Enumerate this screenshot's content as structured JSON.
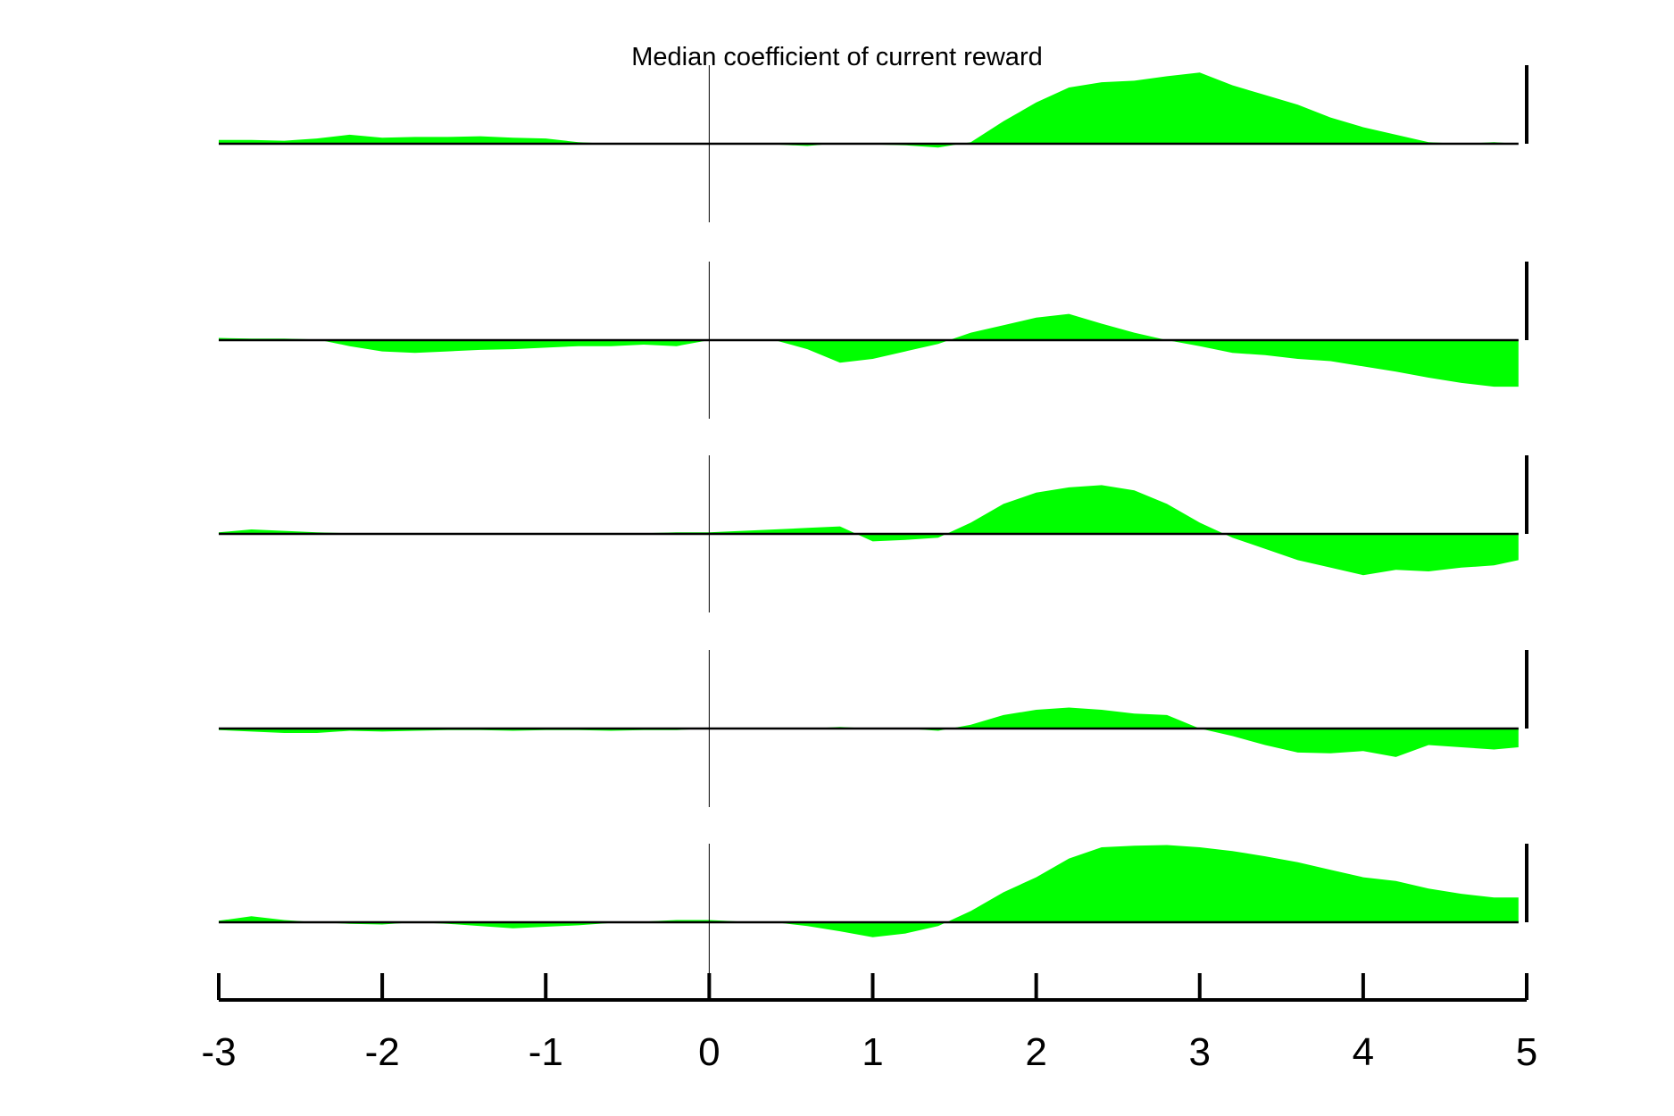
{
  "chart_data": {
    "type": "area",
    "title": "Median coefficient of current reward",
    "xlabel": "",
    "ylabel": "",
    "xlim": [
      -3,
      5
    ],
    "xticks": [
      -3,
      -2,
      -1,
      0,
      1,
      2,
      3,
      4,
      5
    ],
    "xtick_labels": [
      "-3",
      "-2",
      "-1",
      "0",
      "1",
      "2",
      "3",
      "4",
      "5"
    ],
    "grid": false,
    "legend": "none",
    "fill_color": "#00ff00",
    "line_color": "#000000",
    "x": [
      -3.0,
      -2.8,
      -2.6,
      -2.4,
      -2.2,
      -2.0,
      -1.8,
      -1.6,
      -1.4,
      -1.2,
      -1.0,
      -0.8,
      -0.6,
      -0.4,
      -0.2,
      0.0,
      0.2,
      0.4,
      0.6,
      0.8,
      1.0,
      1.2,
      1.4,
      1.6,
      1.8,
      2.0,
      2.2,
      2.4,
      2.6,
      2.8,
      3.0,
      3.2,
      3.4,
      3.6,
      3.8,
      4.0,
      4.2,
      4.4,
      4.6,
      4.8,
      4.95
    ],
    "series": [
      {
        "values": [
          0.05,
          0.05,
          0.04,
          0.07,
          0.12,
          0.08,
          0.09,
          0.09,
          0.1,
          0.08,
          0.07,
          0.02,
          0.0,
          0.0,
          0.0,
          0.0,
          0.0,
          -0.01,
          -0.03,
          0.01,
          -0.01,
          -0.02,
          -0.05,
          0.02,
          0.3,
          0.55,
          0.75,
          0.82,
          0.84,
          0.9,
          0.95,
          0.78,
          0.65,
          0.52,
          0.35,
          0.22,
          0.12,
          0.02,
          0.0,
          0.02,
          0.0
        ]
      },
      {
        "values": [
          0.03,
          0.02,
          0.02,
          0.01,
          -0.08,
          -0.15,
          -0.17,
          -0.15,
          -0.13,
          -0.12,
          -0.1,
          -0.08,
          -0.08,
          -0.06,
          -0.08,
          0.0,
          0.0,
          0.0,
          -0.12,
          -0.3,
          -0.25,
          -0.15,
          -0.05,
          0.1,
          0.2,
          0.3,
          0.35,
          0.22,
          0.1,
          0.0,
          -0.08,
          -0.17,
          -0.2,
          -0.25,
          -0.28,
          -0.35,
          -0.42,
          -0.5,
          -0.57,
          -0.62,
          -0.62
        ]
      },
      {
        "values": [
          0.02,
          0.06,
          0.04,
          0.02,
          0.01,
          0.01,
          0.01,
          0.01,
          0.0,
          0.0,
          0.0,
          0.0,
          0.0,
          0.01,
          0.02,
          0.02,
          0.04,
          0.06,
          0.08,
          0.1,
          -0.1,
          -0.08,
          -0.05,
          0.15,
          0.4,
          0.55,
          0.62,
          0.65,
          0.58,
          0.4,
          0.15,
          -0.05,
          -0.2,
          -0.35,
          -0.45,
          -0.55,
          -0.48,
          -0.5,
          -0.45,
          -0.42,
          -0.35
        ]
      },
      {
        "values": [
          -0.02,
          -0.04,
          -0.06,
          -0.06,
          -0.03,
          -0.04,
          -0.03,
          -0.02,
          -0.02,
          -0.03,
          -0.02,
          -0.02,
          -0.03,
          -0.02,
          -0.02,
          0.0,
          0.0,
          0.01,
          0.0,
          0.02,
          0.0,
          0.0,
          -0.03,
          0.05,
          0.18,
          0.25,
          0.28,
          0.25,
          0.2,
          0.18,
          0.0,
          -0.1,
          -0.22,
          -0.32,
          -0.33,
          -0.3,
          -0.38,
          -0.22,
          -0.25,
          -0.28,
          -0.25
        ]
      },
      {
        "values": [
          0.02,
          0.08,
          0.03,
          0.0,
          -0.02,
          -0.03,
          0.0,
          -0.02,
          -0.05,
          -0.08,
          -0.06,
          -0.04,
          -0.01,
          0.01,
          0.03,
          0.03,
          0.01,
          0.0,
          -0.05,
          -0.12,
          -0.2,
          -0.15,
          -0.05,
          0.15,
          0.4,
          0.6,
          0.85,
          1.0,
          1.02,
          1.03,
          1.0,
          0.95,
          0.88,
          0.8,
          0.7,
          0.6,
          0.55,
          0.45,
          0.38,
          0.33,
          0.33
        ]
      }
    ]
  }
}
